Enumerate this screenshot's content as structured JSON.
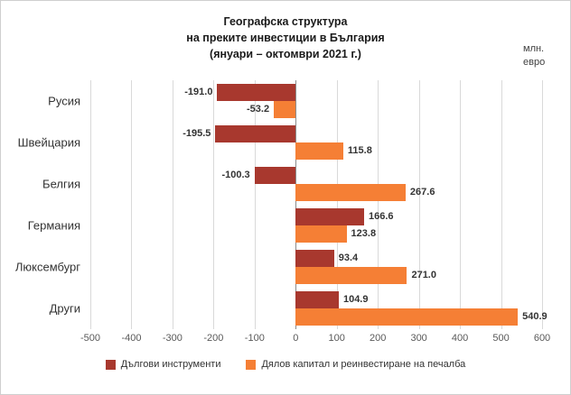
{
  "chart_data": {
    "type": "bar",
    "orientation": "horizontal",
    "title_line1": "Географска структура",
    "title_line2": "на преките инвестиции в България",
    "subtitle": "(януари – октомври 2021 г.)",
    "unit_line1": "млн.",
    "unit_line2": "евро",
    "categories": [
      "Русия",
      "Швейцария",
      "Белгия",
      "Германия",
      "Люксембург",
      "Други"
    ],
    "series": [
      {
        "name": "Дългови инструменти",
        "color": "#a8382e",
        "values": [
          -191.0,
          -195.5,
          -100.3,
          166.6,
          93.4,
          104.9
        ]
      },
      {
        "name": "Дялов капитал и реинвестиране на печалба",
        "color": "#f57f35",
        "values": [
          -53.2,
          115.8,
          267.6,
          123.8,
          271.0,
          540.9
        ]
      }
    ],
    "xlim": [
      -500,
      600
    ],
    "x_ticks": [
      -500,
      -400,
      -300,
      -200,
      -100,
      0,
      100,
      200,
      300,
      400,
      500,
      600
    ],
    "grid": true,
    "legend_position": "bottom",
    "gridline_color": "#d9d9d9",
    "zero_line_color": "#8c8c8c"
  }
}
